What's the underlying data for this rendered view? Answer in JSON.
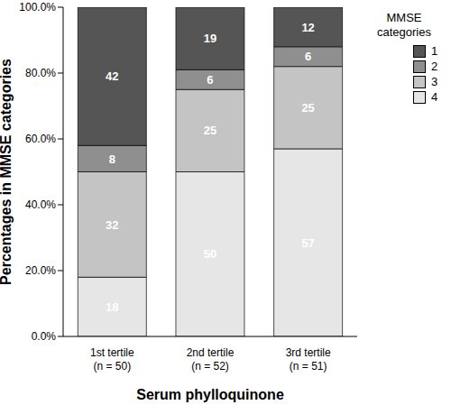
{
  "chart_data": {
    "type": "bar",
    "stacked": true,
    "data_labels": true,
    "x_label": "Serum phylloquinone",
    "y_label": "Percentages in MMSE categories",
    "legend_title": "MMSE categories",
    "legend": "upper right",
    "categories": [
      "1st tertile\n(n = 50)",
      "2nd tertile\n(n = 52)",
      "3rd tertile\n(n = 51)"
    ],
    "series": [
      {
        "name": "4",
        "color": "#e6e6e6",
        "values": [
          18,
          50,
          57
        ]
      },
      {
        "name": "3",
        "color": "#c4c4c4",
        "values": [
          32,
          25,
          25
        ]
      },
      {
        "name": "2",
        "color": "#8f8f8f",
        "values": [
          8,
          6,
          6
        ]
      },
      {
        "name": "1",
        "color": "#555555",
        "values": [
          42,
          19,
          12
        ]
      }
    ],
    "ylim": [
      0,
      100
    ],
    "yticks": [
      {
        "value": 0,
        "label": "0.0%"
      },
      {
        "value": 20,
        "label": "20.0%"
      },
      {
        "value": 40,
        "label": "40.0%"
      },
      {
        "value": 60,
        "label": "60.0%"
      },
      {
        "value": 80,
        "label": "80.0%"
      },
      {
        "value": 100,
        "label": "100.0%"
      }
    ]
  }
}
